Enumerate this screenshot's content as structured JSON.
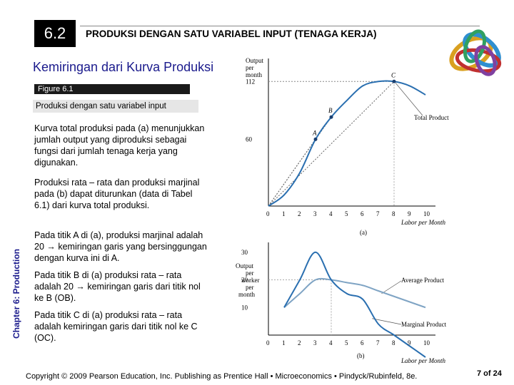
{
  "header": {
    "section_number": "6.2",
    "title": "PRODUKSI DENGAN SATU VARIABEL INPUT (TENAGA KERJA)",
    "subtitle": "Kemiringan dari Kurva Produksi"
  },
  "figure": {
    "label": "Figure 6.1",
    "caption": "Produksi dengan satu variabel input"
  },
  "paragraphs": [
    "Kurva total produksi pada (a) menunjukkan jumlah output yang diproduksi sebagai fungsi dari jumlah tenaga kerja yang digunakan.",
    "Produksi rata – rata dan produksi marjinal pada (b) dapat diturunkan (data di Tabel 6.1) dari kurva total produksi.",
    "Pada titik A di (a), produksi marjinal adalah 20 → kemiringan garis yang bersinggungan dengan kurva ini di A.",
    "Pada titik B di (a) produksi rata – rata adalah 20 → kemiringan garis dari titik nol ke B (OB).",
    "Pada titik C di (a) produksi rata – rata adalah kemiringan garis dari titik nol ke C (OC)."
  ],
  "sidebar": {
    "chapter_label": "Chapter 6: Production"
  },
  "footer": {
    "copyright": "Copyright © 2009 Pearson Education, Inc. Publishing as Prentice Hall • Microeconomics • Pindyck/Rubinfeld, 8e.",
    "page": "7 of 24"
  },
  "colors": {
    "curve": "#2a6fb0",
    "grey_curve": "#7fa4c4",
    "title_blue": "#1a1a8c"
  },
  "chart_data": [
    {
      "type": "line",
      "panel": "(a)",
      "series": [
        {
          "name": "Total Product",
          "x": [
            0,
            1,
            2,
            3,
            4,
            5,
            6,
            7,
            8,
            9,
            10
          ],
          "y": [
            0,
            10,
            30,
            60,
            80,
            95,
            108,
            112,
            112,
            108,
            100
          ]
        }
      ],
      "points": [
        {
          "label": "A",
          "x": 3,
          "y": 60
        },
        {
          "label": "B",
          "x": 4,
          "y": 80
        },
        {
          "label": "C",
          "x": 8,
          "y": 112
        }
      ],
      "ylabel": "Output per month",
      "xlabel": "Labor per Month",
      "y_ticks": [
        "112",
        "60"
      ],
      "x_ticks": [
        "0",
        "1",
        "2",
        "3",
        "4",
        "5",
        "6",
        "7",
        "8",
        "9",
        "10"
      ],
      "xlim": [
        0,
        10
      ],
      "ylim": [
        0,
        125
      ]
    },
    {
      "type": "line",
      "panel": "(b)",
      "series": [
        {
          "name": "Average Product",
          "x": [
            1,
            2,
            3,
            4,
            5,
            6,
            7,
            8,
            9,
            10
          ],
          "y": [
            10,
            15,
            20,
            20,
            19,
            18,
            16,
            14,
            12,
            10
          ]
        },
        {
          "name": "Marginal Product",
          "x": [
            1,
            2,
            3,
            4,
            5,
            6,
            7,
            8,
            9,
            10
          ],
          "y": [
            10,
            20,
            30,
            20,
            15,
            13,
            4,
            0,
            -4,
            -8
          ]
        }
      ],
      "ylabel": "Output per worker per month",
      "xlabel": "Labor per Month",
      "y_ticks": [
        "30",
        "20",
        "10"
      ],
      "x_ticks": [
        "0",
        "1",
        "2",
        "3",
        "4",
        "5",
        "6",
        "7",
        "8",
        "9",
        "10"
      ],
      "xlim": [
        0,
        10
      ],
      "ylim": [
        0,
        32
      ]
    }
  ]
}
